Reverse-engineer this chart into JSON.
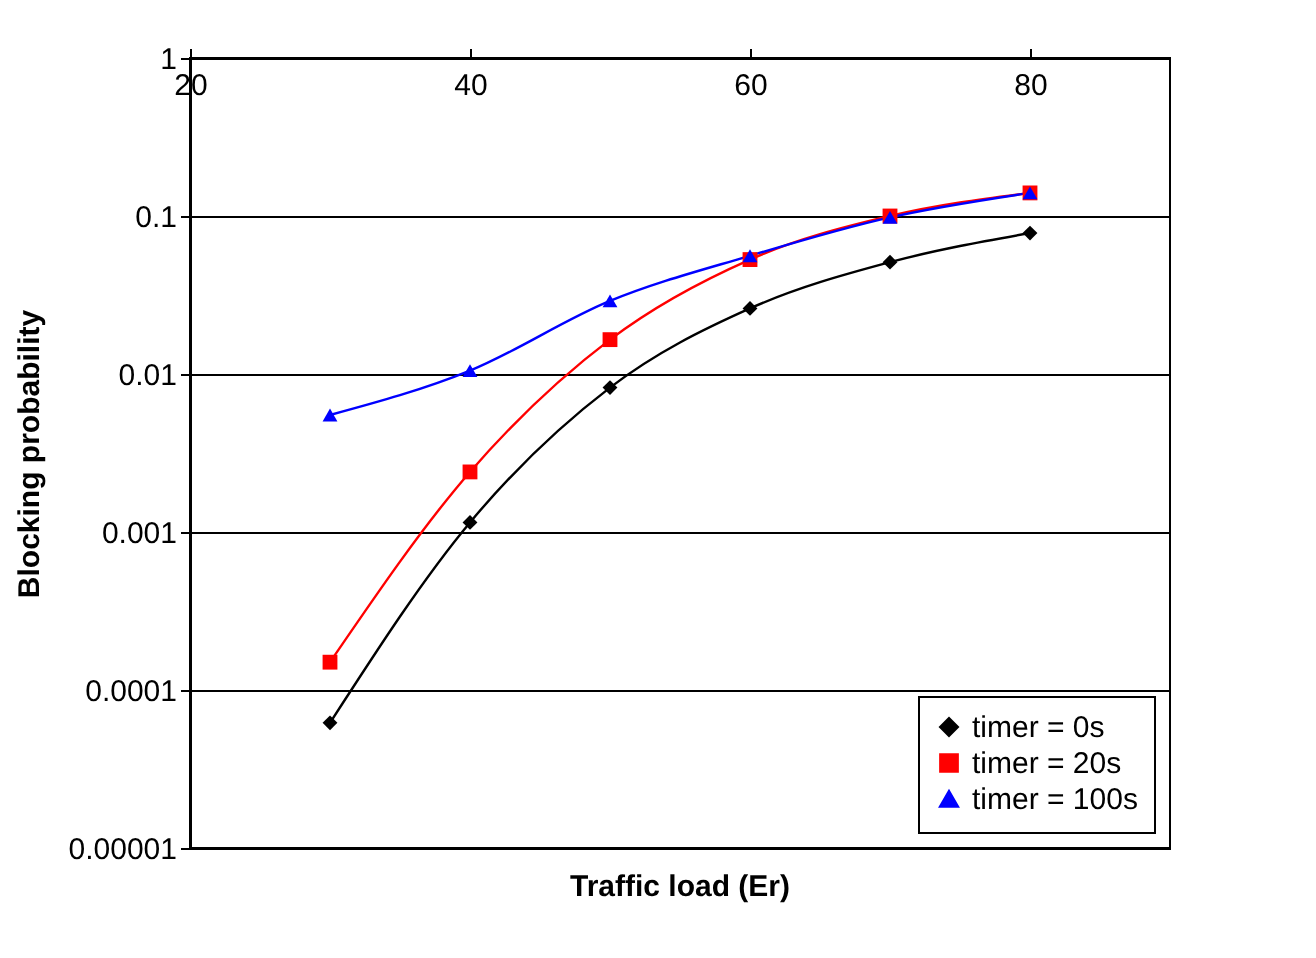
{
  "chart_data": {
    "type": "line",
    "xlabel": "Traffic load (Er)",
    "ylabel": "Blocking probability",
    "x": [
      30,
      40,
      50,
      60,
      70,
      80
    ],
    "series": [
      {
        "name": "timer = 0s",
        "color": "#000000",
        "marker": "diamond",
        "values": [
          6.2e-05,
          0.00115,
          0.0082,
          0.026,
          0.051,
          0.078
        ]
      },
      {
        "name": "timer = 20s",
        "color": "#ff0000",
        "marker": "square",
        "values": [
          0.00015,
          0.0024,
          0.0165,
          0.053,
          0.1,
          0.14
        ]
      },
      {
        "name": "timer = 100s",
        "color": "#0000ff",
        "marker": "triangle",
        "values": [
          0.0055,
          0.0105,
          0.029,
          0.056,
          0.098,
          0.14
        ]
      }
    ],
    "xlim": [
      20,
      90
    ],
    "xticks": [
      20,
      40,
      60,
      80
    ],
    "ylim": [
      1e-05,
      1
    ],
    "yticks": [
      {
        "value": 1e-05,
        "label": "0.00001"
      },
      0.0001,
      0.001,
      0.01,
      0.1,
      1
    ],
    "log": "y",
    "grid": "y",
    "legend": "bottom right",
    "line_style": "solid"
  }
}
